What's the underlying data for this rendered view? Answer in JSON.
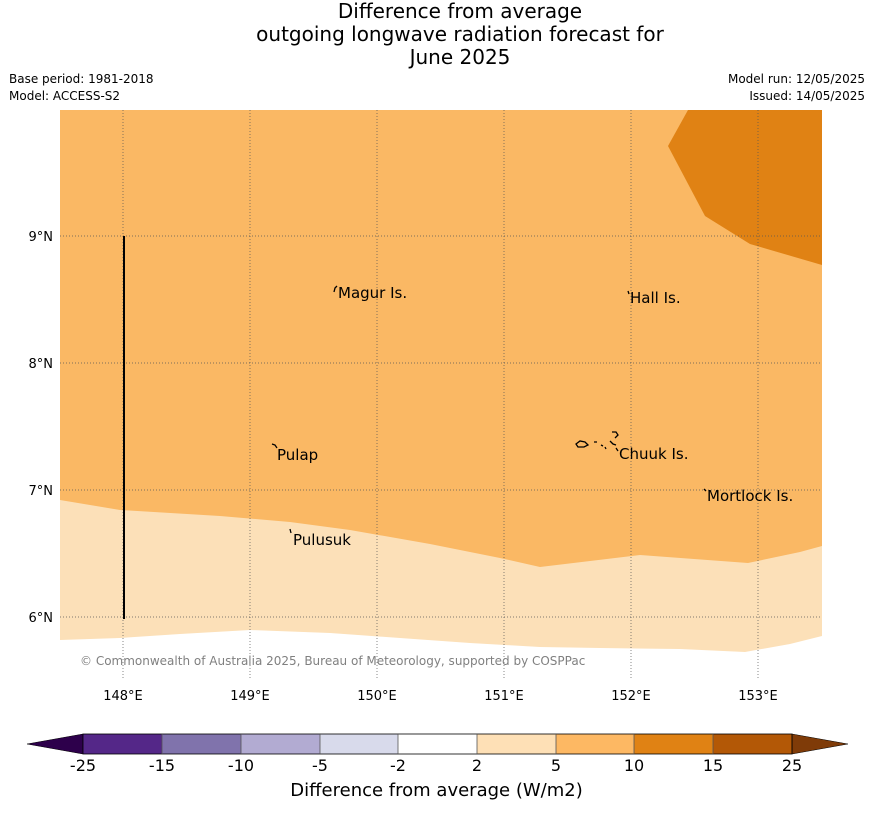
{
  "header": {
    "title_lines": [
      "Difference from average",
      "outgoing longwave radiation forecast for",
      "June 2025"
    ],
    "base_period": "Base period: 1981-2018",
    "model": "Model: ACCESS-S2",
    "model_run": "Model run: 12/05/2025",
    "issued": "Issued: 14/05/2025"
  },
  "map": {
    "lat_ticks": [
      "9°N",
      "8°N",
      "7°N",
      "6°N"
    ],
    "lon_ticks": [
      "148°E",
      "149°E",
      "150°E",
      "151°E",
      "152°E",
      "153°E"
    ],
    "places": [
      "Magur Is.",
      "Hall Is.",
      "Pulap",
      "Chuuk Is.",
      "Mortlock Is.",
      "Pulusuk"
    ],
    "copyright": "© Commonwealth of Australia 2025, Bureau of Meteorology, supported by COSPPac",
    "fill_colors": {
      "band_2_5": "#fce0b8",
      "band_5_10": "#fab864",
      "band_10_15": "#e08214"
    }
  },
  "colorbar": {
    "ticks": [
      "-25",
      "-15",
      "-10",
      "-5",
      "-2",
      "2",
      "5",
      "10",
      "15",
      "25"
    ],
    "colors": [
      "#2d004b",
      "#542788",
      "#8073ac",
      "#b2abd2",
      "#d8daeb",
      "#ffffff",
      "#fee0b6",
      "#fdb863",
      "#e08214",
      "#b35806",
      "#7f3b08"
    ],
    "label": "Difference from average (W/m2)"
  }
}
